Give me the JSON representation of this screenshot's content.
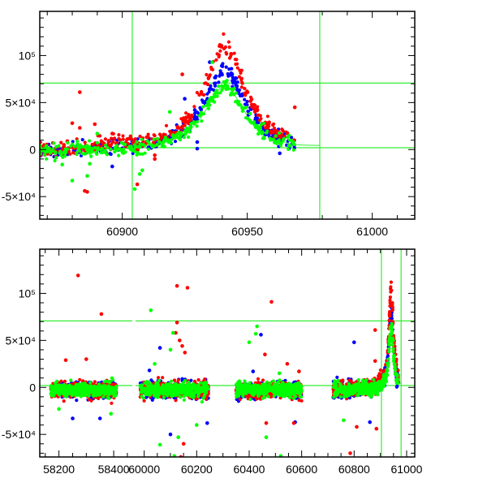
{
  "chart_data": {
    "type": "scatter",
    "title": "",
    "colors": {
      "r": "#ff0000",
      "b": "#0000ff",
      "g": "#00ff00",
      "guide": "#33ee33"
    },
    "model": {
      "t0": 60941,
      "width": 10,
      "amplitude": {
        "r": 112000,
        "b": 86000,
        "g": 70000
      },
      "baseline": -2500,
      "scatter": 4000,
      "data_end": 60969
    },
    "guides": {
      "vertical": [
        60904,
        60979
      ],
      "horizontal": [
        70700,
        2000
      ]
    },
    "panels": [
      {
        "name": "zoom",
        "xlim": [
          60867,
          61017
        ],
        "ylim": [
          -74000,
          147000
        ],
        "xticks": [
          {
            "v": 60900,
            "label": "60900"
          },
          {
            "v": 60950,
            "label": "60950"
          },
          {
            "v": 61000,
            "label": "61000"
          }
        ],
        "yticks": [
          {
            "v": 100000,
            "label": "10⁵"
          },
          {
            "v": 50000,
            "label": "5×10⁴"
          },
          {
            "v": 0,
            "label": "0"
          },
          {
            "v": -50000,
            "label": "-5×10⁴"
          }
        ],
        "seasons": [
          [
            60867,
            60969
          ]
        ],
        "outliers": {
          "r": [
            [
              60883,
              61000
            ],
            [
              60880,
              28000
            ],
            [
              60883,
              23000
            ],
            [
              60889,
              27000
            ],
            [
              60885,
              -44000
            ],
            [
              60886,
              -45000
            ],
            [
              60896,
              17000
            ],
            [
              60924,
              80000
            ],
            [
              60969,
              45000
            ],
            [
              60906,
              -37000
            ],
            [
              60913,
              -6000
            ],
            [
              60913,
              -10000
            ],
            [
              60878,
              9000
            ]
          ],
          "g": [
            [
              60880,
              -33000
            ],
            [
              60886,
              -28000
            ],
            [
              60905,
              -42000
            ],
            [
              60907,
              -26000
            ],
            [
              60908,
              -22000
            ],
            [
              60876,
              -16000
            ],
            [
              60936,
              93000
            ],
            [
              60887,
              -15000
            ],
            [
              60890,
              17000
            ],
            [
              60919,
              40000
            ]
          ],
          "b": [
            [
              60896,
              -18000
            ],
            [
              60929,
              42000
            ],
            [
              60963,
              -4000
            ],
            [
              60930,
              1000
            ],
            [
              60930,
              8000
            ],
            [
              60925,
              54000
            ],
            [
              60935,
              93000
            ]
          ]
        }
      },
      {
        "name": "full",
        "ylim": [
          -74000,
          147000
        ],
        "segments": [
          {
            "xlim": [
              58130,
              58468
            ],
            "xticks": [
              {
                "v": 58200,
                "label": "58200"
              },
              {
                "v": 58400,
                "label": "58400"
              }
            ]
          },
          {
            "xlim": [
              59967,
              61031
            ],
            "xticks": [
              {
                "v": 60000,
                "label": "60000"
              },
              {
                "v": 60200,
                "label": "60200"
              },
              {
                "v": 60400,
                "label": "60400"
              },
              {
                "v": 60600,
                "label": "60600"
              },
              {
                "v": 60800,
                "label": "60800"
              },
              {
                "v": 61000,
                "label": "61000"
              }
            ]
          }
        ],
        "yticks": [
          {
            "v": 100000,
            "label": "10⁵"
          },
          {
            "v": 50000,
            "label": "5×10⁴"
          },
          {
            "v": 0,
            "label": "0"
          },
          {
            "v": -50000,
            "label": "-5×10⁴"
          }
        ],
        "seasons": [
          [
            58170,
            58410
          ],
          [
            59985,
            60245
          ],
          [
            60350,
            60600
          ],
          [
            60720,
            60969
          ]
        ],
        "outliers": {
          "r": [
            [
              58270,
              119000
            ],
            [
              58355,
              78000
            ],
            [
              58225,
              29000
            ],
            [
              58300,
              30000
            ],
            [
              60125,
              108000
            ],
            [
              60165,
              106000
            ],
            [
              60125,
              69000
            ],
            [
              60485,
              91000
            ],
            [
              60120,
              58000
            ],
            [
              60135,
              50000
            ],
            [
              60785,
              -70000
            ],
            [
              60140,
              -74000
            ],
            [
              60150,
              -60000
            ],
            [
              60880,
              61000
            ],
            [
              60145,
              44000
            ],
            [
              60155,
              37000
            ],
            [
              60460,
              35000
            ],
            [
              60545,
              25000
            ],
            [
              60590,
              17000
            ],
            [
              60880,
              28000
            ],
            [
              60885,
              -44000
            ],
            [
              60810,
              -42000
            ],
            [
              60570,
              -38000
            ],
            [
              60465,
              -38000
            ]
          ],
          "g": [
            [
              60025,
              82000
            ],
            [
              60430,
              65000
            ],
            [
              60400,
              48000
            ],
            [
              60465,
              -53000
            ],
            [
              60060,
              -61000
            ],
            [
              60130,
              -53000
            ],
            [
              60520,
              -73000
            ],
            [
              60115,
              -73000
            ],
            [
              60110,
              58000
            ],
            [
              60100,
              40000
            ],
            [
              60425,
              57000
            ],
            [
              60040,
              25000
            ],
            [
              60200,
              -40000
            ],
            [
              58200,
              -23000
            ],
            [
              58390,
              -28000
            ],
            [
              60760,
              -35000
            ],
            [
              60515,
              15000
            ]
          ],
          "b": [
            [
              60060,
              42000
            ],
            [
              60445,
              56000
            ],
            [
              60800,
              48000
            ],
            [
              60100,
              -50000
            ],
            [
              58250,
              -33000
            ],
            [
              58350,
              -33000
            ],
            [
              60240,
              -38000
            ],
            [
              60020,
              18000
            ],
            [
              60415,
              17000
            ],
            [
              60575,
              -37000
            ],
            [
              60860,
              -37000
            ]
          ]
        }
      }
    ]
  }
}
